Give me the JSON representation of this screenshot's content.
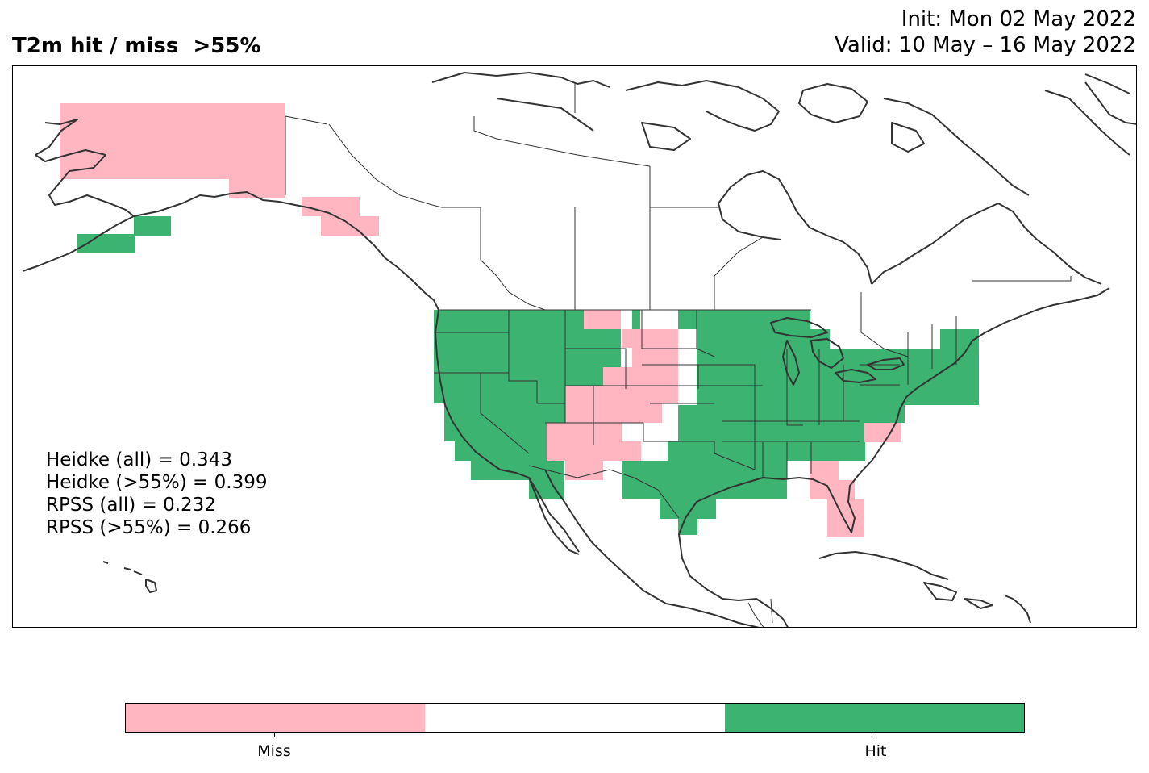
{
  "header": {
    "title": "T2m hit / miss  >55%",
    "init_line": "Init: Mon 02 May 2022",
    "valid_line": "Valid: 10 May – 16 May 2022"
  },
  "stats": {
    "lines": [
      "Heidke (all) = 0.343",
      "Heidke (>55%) = 0.399",
      "RPSS (all) = 0.232",
      "RPSS (>55%) = 0.266"
    ]
  },
  "legend": {
    "labels": [
      "Miss",
      "Hit"
    ],
    "colors": {
      "miss": "#ffb6c1",
      "neutral": "#ffffff",
      "hit": "#3cb371",
      "outline": "#333333"
    }
  }
}
